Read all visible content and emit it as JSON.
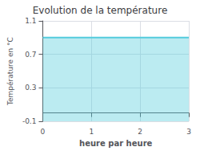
{
  "chart_data": {
    "type": "line",
    "title": "Evolution de la température",
    "xlabel": "heure par heure",
    "ylabel": "Température en °C",
    "x": [
      0,
      3
    ],
    "series": [
      {
        "type": "area",
        "color": "#55ccdd",
        "values": [
          0.9,
          0.9
        ]
      }
    ],
    "xlim": [
      0,
      3
    ],
    "xticks": [
      0,
      1,
      2,
      3
    ],
    "ylim": [
      -0.1,
      1.1
    ],
    "yticks": [
      -0.1,
      0.3,
      0.7,
      1.1
    ],
    "grid": true
  }
}
